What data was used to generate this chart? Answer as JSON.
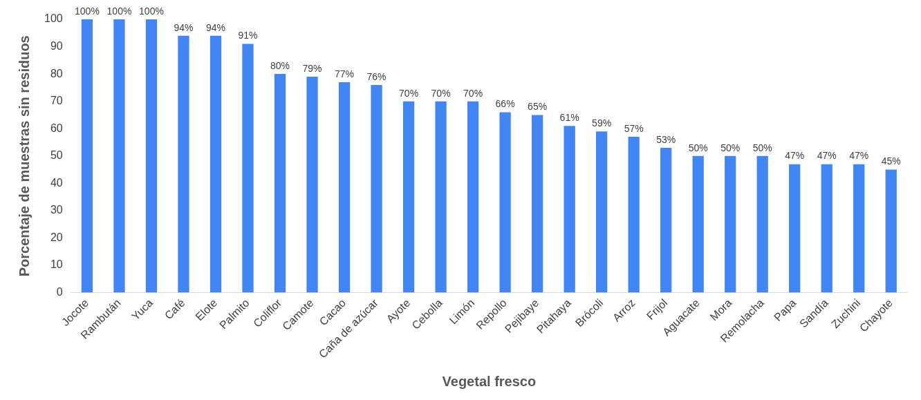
{
  "chart_data": {
    "type": "bar",
    "xlabel": "Vegetal fresco",
    "ylabel": "Porcentaje de muestras sin residuos",
    "categories": [
      "Jocote",
      "Rambután",
      "Yuca",
      "Café",
      "Elote",
      "Palmito",
      "Coliflor",
      "Camote",
      "Cacao",
      "Caña de azúcar",
      "Ayote",
      "Cebolla",
      "Limón",
      "Repollo",
      "Pejibaye",
      "Pitahaya",
      "Brócoli",
      "Arroz",
      "Frijol",
      "Aguacate",
      "Mora",
      "Remolacha",
      "Papa",
      "Sandía",
      "Zuchini",
      "Chayote"
    ],
    "values": [
      100,
      100,
      100,
      94,
      94,
      91,
      80,
      79,
      77,
      76,
      70,
      70,
      70,
      66,
      65,
      61,
      59,
      57,
      53,
      50,
      50,
      50,
      47,
      47,
      47,
      45
    ],
    "value_labels": [
      "100%",
      "100%",
      "100%",
      "94%",
      "94%",
      "91%",
      "80%",
      "79%",
      "77%",
      "76%",
      "70%",
      "70%",
      "70%",
      "66%",
      "65%",
      "61%",
      "59%",
      "57%",
      "53%",
      "50%",
      "50%",
      "50%",
      "47%",
      "47%",
      "47%",
      "45%"
    ],
    "color": "#4285f4",
    "ylim": [
      0,
      100
    ],
    "yticks": [
      0,
      10,
      20,
      30,
      40,
      50,
      60,
      70,
      80,
      90,
      100
    ],
    "grid": false,
    "legend": false
  }
}
